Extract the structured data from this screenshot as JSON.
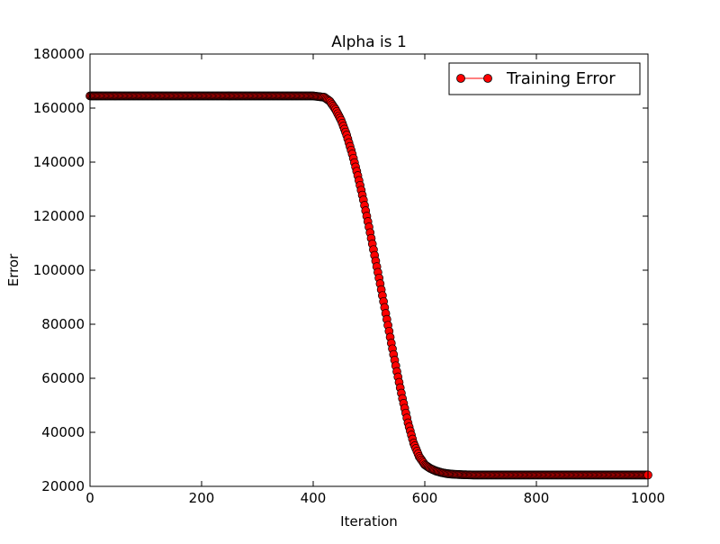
{
  "chart_data": {
    "type": "line",
    "title": "Alpha is 1",
    "xlabel": "Iteration",
    "ylabel": "Error",
    "xlim": [
      0,
      1000
    ],
    "ylim": [
      20000,
      180000
    ],
    "xticks": [
      0,
      200,
      400,
      600,
      800,
      1000
    ],
    "yticks": [
      20000,
      40000,
      60000,
      80000,
      100000,
      120000,
      140000,
      160000,
      180000
    ],
    "grid": false,
    "legend_position": "top-right",
    "series": [
      {
        "name": "Training Error",
        "color": "#ff0000",
        "marker": "circle",
        "marker_edge_color": "#000000",
        "x": [
          0,
          50,
          100,
          150,
          200,
          250,
          300,
          350,
          400,
          420,
          430,
          440,
          450,
          460,
          470,
          480,
          490,
          500,
          510,
          520,
          530,
          540,
          550,
          560,
          570,
          580,
          590,
          600,
          610,
          620,
          630,
          640,
          650,
          660,
          670,
          680,
          690,
          700,
          750,
          800,
          850,
          900,
          950,
          1000
        ],
        "y": [
          164500,
          164500,
          164500,
          164500,
          164500,
          164500,
          164500,
          164500,
          164500,
          164000,
          162500,
          159500,
          155500,
          150000,
          143000,
          135000,
          126000,
          116000,
          105500,
          95000,
          84000,
          73000,
          62500,
          52500,
          43500,
          36000,
          31000,
          28000,
          26600,
          25700,
          25100,
          24700,
          24500,
          24400,
          24300,
          24250,
          24200,
          24200,
          24200,
          24200,
          24200,
          24200,
          24200,
          24200
        ]
      }
    ]
  }
}
